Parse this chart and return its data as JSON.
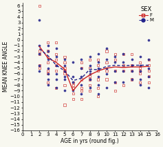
{
  "title": "SEX",
  "xlabel": "AGE in yrs (round fig.)",
  "ylabel": "MEAN KNEE ANGLE",
  "xlim": [
    0,
    16
  ],
  "ylim": [
    -16,
    6.5
  ],
  "yticks": [
    6,
    5,
    4,
    3,
    2,
    1,
    0,
    -1,
    -2,
    -3,
    -4,
    -5,
    -6,
    -7,
    -8,
    -9,
    -10,
    -11,
    -12,
    -13,
    -14,
    -15,
    -16
  ],
  "xticks": [
    0,
    1,
    2,
    3,
    4,
    5,
    6,
    7,
    8,
    9,
    10,
    11,
    12,
    13,
    14,
    15,
    16
  ],
  "F_line_x": [
    2,
    3,
    4,
    5,
    6,
    7,
    8,
    9,
    10,
    11,
    12,
    13,
    14,
    15
  ],
  "F_line_y": [
    -1.2,
    -3.2,
    -4.0,
    -5.2,
    -9.0,
    -7.2,
    -6.2,
    -5.5,
    -5.0,
    -4.8,
    -4.9,
    -4.8,
    -4.8,
    -4.7
  ],
  "M_line_x": [
    2,
    3,
    4,
    5,
    6,
    7,
    8,
    9,
    10,
    11,
    12,
    13,
    14,
    15
  ],
  "M_line_y": [
    -1.6,
    -2.8,
    -4.5,
    -5.5,
    -7.2,
    -6.8,
    -5.2,
    -5.3,
    -4.7,
    -4.5,
    -4.6,
    -4.5,
    -4.5,
    -4.5
  ],
  "F_scatter_x": [
    2,
    2,
    2,
    2,
    2,
    3,
    3,
    3,
    3,
    3,
    3,
    3,
    4,
    4,
    4,
    4,
    4,
    4,
    5,
    5,
    5,
    5,
    5,
    5,
    5,
    6,
    6,
    6,
    6,
    6,
    7,
    7,
    7,
    7,
    7,
    7,
    8,
    8,
    8,
    8,
    8,
    8,
    9,
    9,
    9,
    9,
    9,
    9,
    10,
    10,
    10,
    10,
    11,
    11,
    11,
    11,
    11,
    12,
    12,
    12,
    12,
    13,
    13,
    13,
    13,
    14,
    14,
    14,
    14,
    14,
    15,
    15,
    15,
    15,
    15
  ],
  "F_scatter_y": [
    6.0,
    -2.0,
    -2.5,
    -4.5,
    -5.0,
    -0.5,
    -2.0,
    -3.0,
    -4.0,
    -5.5,
    -6.0,
    -7.5,
    -0.5,
    -2.5,
    -3.5,
    -4.5,
    -5.5,
    -8.5,
    -3.0,
    -4.0,
    -5.0,
    -5.5,
    -6.0,
    -8.0,
    -11.5,
    -7.5,
    -8.0,
    -8.5,
    -9.5,
    -10.5,
    -4.0,
    -5.0,
    -7.0,
    -8.5,
    -9.0,
    -10.5,
    -3.5,
    -5.0,
    -6.5,
    -7.0,
    -8.0,
    -9.0,
    -3.5,
    -4.5,
    -5.5,
    -7.0,
    -8.5,
    -10.0,
    -2.0,
    -4.0,
    -5.5,
    -7.0,
    -2.5,
    -3.5,
    -5.5,
    -7.5,
    -9.0,
    -2.5,
    -4.5,
    -5.5,
    -8.0,
    -2.5,
    -4.5,
    -5.5,
    -7.0,
    -4.0,
    -5.0,
    -5.5,
    -6.0,
    -7.5,
    -3.5,
    -4.5,
    -5.5,
    -6.5,
    -7.5
  ],
  "M_scatter_x": [
    2,
    2,
    2,
    2,
    2,
    3,
    3,
    3,
    3,
    3,
    3,
    3,
    4,
    4,
    4,
    4,
    4,
    4,
    5,
    5,
    5,
    5,
    5,
    5,
    6,
    6,
    6,
    6,
    7,
    7,
    7,
    7,
    7,
    8,
    8,
    8,
    8,
    8,
    8,
    9,
    9,
    9,
    9,
    9,
    9,
    10,
    10,
    10,
    10,
    10,
    11,
    11,
    11,
    11,
    12,
    12,
    12,
    12,
    13,
    13,
    13,
    13,
    14,
    14,
    14,
    14,
    14,
    15,
    15,
    15,
    15,
    15
  ],
  "M_scatter_y": [
    3.5,
    -1.0,
    -2.5,
    -4.5,
    -5.5,
    -1.0,
    -2.0,
    -3.5,
    -5.0,
    -6.0,
    -7.0,
    -8.0,
    -1.5,
    -3.0,
    -4.5,
    -6.0,
    -7.0,
    -8.5,
    -3.5,
    -4.5,
    -5.5,
    -6.5,
    -7.0,
    -9.0,
    -4.0,
    -6.5,
    -7.5,
    -9.0,
    -3.5,
    -5.0,
    -6.5,
    -8.0,
    -9.5,
    -3.0,
    -4.5,
    -5.5,
    -6.0,
    -7.0,
    -8.5,
    -2.5,
    -4.0,
    -5.0,
    -6.5,
    -8.0,
    -9.5,
    -1.5,
    -3.5,
    -5.0,
    -6.0,
    -8.5,
    -3.0,
    -4.0,
    -5.5,
    -7.5,
    -2.5,
    -4.0,
    -5.5,
    -7.5,
    -3.5,
    -4.5,
    -5.5,
    -7.0,
    -3.0,
    -4.5,
    -5.5,
    -7.0,
    -8.0,
    0.0,
    -3.5,
    -5.0,
    -6.5,
    -8.5
  ],
  "F_color": "#cc2222",
  "M_color": "#22228a",
  "bg_color": "#f8f8f0",
  "tick_fontsize": 5,
  "label_fontsize": 5.5,
  "legend_fontsize": 5
}
